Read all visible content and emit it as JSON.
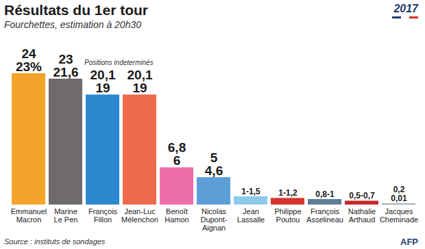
{
  "chart_data": {
    "type": "bar",
    "title": "Résultats du 1er tour",
    "subtitle": "Fourchettes, estimation à 20h30",
    "annotation": "Positions indeterminés",
    "source": "Source : instituts de sondages",
    "credit": "AFP",
    "badge": "2017",
    "categories": [
      "Emmanuel\nMacron",
      "Marine\nLe Pen",
      "François\nFillon",
      "Jean-Luc\nMélenchon",
      "Benoît\nHamon",
      "Nicolas\nDupont-\nAignan",
      "Jean\nLassalle",
      "Philippe\nPoutou",
      "François\nAsselineau",
      "Nathalie\nArthaud",
      "Jacques\nCheminade"
    ],
    "values": [
      24,
      23,
      20.1,
      20.1,
      6.8,
      5,
      1.5,
      1.2,
      1,
      0.7,
      0.2
    ],
    "value_labels": [
      "24\n23%",
      "23\n21,6",
      "20,1\n19",
      "20,1\n19",
      "6,8\n6",
      "5\n4,6",
      "1-1,5",
      "1-1,2",
      "0,8-1",
      "0,5-0,7",
      "0,2\n0,01"
    ],
    "colors": [
      "#f2a42b",
      "#6f6a6d",
      "#2c88cf",
      "#ee6a4b",
      "#ee6fa7",
      "#5b9fd6",
      "#8ccbeb",
      "#d8322f",
      "#5f7d95",
      "#c7282c",
      "#8d99a4"
    ],
    "ylim": [
      0,
      24
    ],
    "data_labels": true,
    "tick_labels": "x",
    "grid": false
  }
}
